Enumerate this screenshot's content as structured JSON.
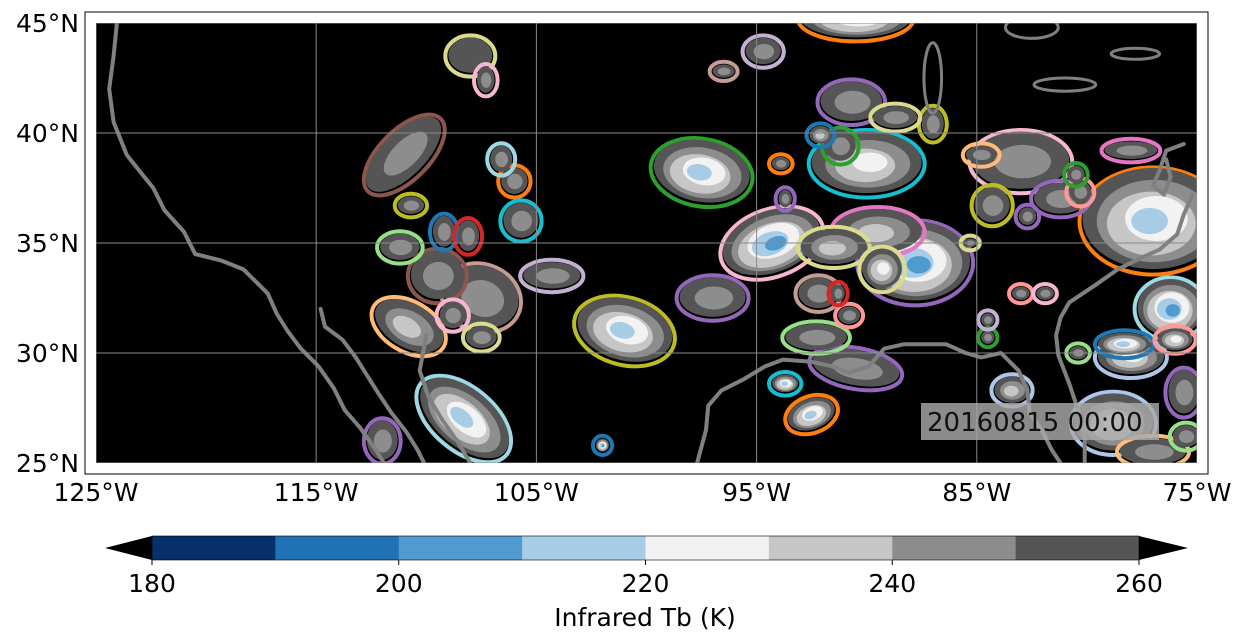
{
  "map": {
    "lon_range": [
      -125,
      -75
    ],
    "lat_range": [
      25,
      45
    ],
    "background_color": "#000000",
    "coastline_color": "#808080",
    "gridlines": true,
    "x_ticks": [
      {
        "value": -125,
        "label": "125°W"
      },
      {
        "value": -115,
        "label": "115°W"
      },
      {
        "value": -105,
        "label": "105°W"
      },
      {
        "value": -95,
        "label": "95°W"
      },
      {
        "value": -85,
        "label": "85°W"
      },
      {
        "value": -75,
        "label": "75°W"
      }
    ],
    "y_ticks": [
      {
        "value": 25,
        "label": "25°N"
      },
      {
        "value": 30,
        "label": "30°N"
      },
      {
        "value": 35,
        "label": "35°N"
      },
      {
        "value": 40,
        "label": "40°N"
      },
      {
        "value": 45,
        "label": "45°N"
      }
    ],
    "timestamp": "20160815 00:00",
    "timestamp_placement": "bottom-right"
  },
  "colorbar": {
    "label": "Infrared Tb (K)",
    "orientation": "horizontal",
    "extend": "both",
    "min": 180,
    "max": 260,
    "step": 10,
    "colors": [
      "#08306b",
      "#2171b5",
      "#4f9bcf",
      "#a6cde5",
      "#f2f2f2",
      "#c6c6c6",
      "#8d8d8d",
      "#555555"
    ],
    "under_color": "#000000",
    "over_color": "#000000",
    "ticks": [
      180,
      200,
      220,
      240,
      260
    ]
  },
  "tracked_features": {
    "outline_colors": [
      "#ff7f0e",
      "#2ca02c",
      "#1f77b4",
      "#9467bd",
      "#8c564b",
      "#e377c2",
      "#17becf",
      "#bcbd22",
      "#ff9896",
      "#98df8a",
      "#ffbb78",
      "#aec7e8",
      "#c5b0d5",
      "#f7b6d2",
      "#dbdb8d",
      "#9edae5",
      "#c49c94",
      "#d62728"
    ],
    "systems": [
      {
        "lon": -111.0,
        "lat": 39.0,
        "rx": 2.2,
        "ry": 1.0,
        "rot": -45,
        "core": 245,
        "outline": "#8c564b"
      },
      {
        "lon": -108.0,
        "lat": 43.5,
        "rx": 1.0,
        "ry": 0.8,
        "rot": 0,
        "core": 250,
        "outline": "#dbdb8d"
      },
      {
        "lon": -107.3,
        "lat": 42.4,
        "rx": 0.4,
        "ry": 0.6,
        "rot": 0,
        "core": 245,
        "outline": "#f7b6d2"
      },
      {
        "lon": -107.5,
        "lat": 32.5,
        "rx": 1.7,
        "ry": 1.4,
        "rot": 20,
        "core": 240,
        "outline": "#c49c94"
      },
      {
        "lon": -109.5,
        "lat": 33.5,
        "rx": 1.2,
        "ry": 1.1,
        "rot": 0,
        "core": 245,
        "outline": "#8c564b"
      },
      {
        "lon": -104.3,
        "lat": 33.5,
        "rx": 1.3,
        "ry": 0.6,
        "rot": 0,
        "core": 245,
        "outline": "#c5b0d5"
      },
      {
        "lon": -106.0,
        "lat": 37.8,
        "rx": 0.6,
        "ry": 0.6,
        "rot": 0,
        "core": 245,
        "outline": "#ff7f0e"
      },
      {
        "lon": -105.7,
        "lat": 36.0,
        "rx": 0.8,
        "ry": 0.8,
        "rot": 0,
        "core": 240,
        "outline": "#17becf"
      },
      {
        "lon": -106.6,
        "lat": 38.8,
        "rx": 0.5,
        "ry": 0.6,
        "rot": 0,
        "core": 245,
        "outline": "#9edae5"
      },
      {
        "lon": -110.7,
        "lat": 36.7,
        "rx": 0.6,
        "ry": 0.4,
        "rot": 0,
        "core": 245,
        "outline": "#bcbd22"
      },
      {
        "lon": -111.2,
        "lat": 34.8,
        "rx": 0.9,
        "ry": 0.6,
        "rot": 0,
        "core": 245,
        "outline": "#98df8a"
      },
      {
        "lon": -109.2,
        "lat": 35.5,
        "rx": 0.5,
        "ry": 0.7,
        "rot": 0,
        "core": 240,
        "outline": "#1f77b4"
      },
      {
        "lon": -108.1,
        "lat": 35.3,
        "rx": 0.5,
        "ry": 0.7,
        "rot": 0,
        "core": 240,
        "outline": "#d62728"
      },
      {
        "lon": -110.8,
        "lat": 31.2,
        "rx": 1.7,
        "ry": 1.0,
        "rot": 30,
        "core": 230,
        "outline": "#ffbb78"
      },
      {
        "lon": -108.3,
        "lat": 27.0,
        "rx": 2.4,
        "ry": 1.3,
        "rot": 40,
        "core": 210,
        "outline": "#9edae5"
      },
      {
        "lon": -108.8,
        "lat": 31.7,
        "rx": 0.6,
        "ry": 0.6,
        "rot": 0,
        "core": 245,
        "outline": "#f7b6d2"
      },
      {
        "lon": -107.5,
        "lat": 30.7,
        "rx": 0.7,
        "ry": 0.5,
        "rot": 0,
        "core": 240,
        "outline": "#dbdb8d"
      },
      {
        "lon": -112.0,
        "lat": 26.0,
        "rx": 0.7,
        "ry": 0.9,
        "rot": 0,
        "core": 245,
        "outline": "#9467bd"
      },
      {
        "lon": -101.0,
        "lat": 31.0,
        "rx": 2.2,
        "ry": 1.4,
        "rot": 15,
        "core": 215,
        "outline": "#bcbd22"
      },
      {
        "lon": -102.0,
        "lat": 25.8,
        "rx": 0.3,
        "ry": 0.3,
        "rot": 0,
        "core": 205,
        "outline": "#1f77b4"
      },
      {
        "lon": -97.5,
        "lat": 38.2,
        "rx": 2.2,
        "ry": 1.4,
        "rot": 10,
        "core": 215,
        "outline": "#2ca02c"
      },
      {
        "lon": -97.0,
        "lat": 32.5,
        "rx": 1.5,
        "ry": 0.9,
        "rot": 0,
        "core": 240,
        "outline": "#9467bd"
      },
      {
        "lon": -94.3,
        "lat": 35.0,
        "rx": 2.3,
        "ry": 1.4,
        "rot": -20,
        "core": 205,
        "outline": "#f7b6d2"
      },
      {
        "lon": -90.0,
        "lat": 38.6,
        "rx": 2.5,
        "ry": 1.4,
        "rot": 0,
        "core": 225,
        "outline": "#17becf"
      },
      {
        "lon": -87.8,
        "lat": 34.1,
        "rx": 2.5,
        "ry": 1.8,
        "rot": 0,
        "core": 200,
        "outline": "#9467bd"
      },
      {
        "lon": -89.5,
        "lat": 35.5,
        "rx": 2.0,
        "ry": 1.0,
        "rot": 0,
        "core": 230,
        "outline": "#e377c2"
      },
      {
        "lon": -91.5,
        "lat": 34.8,
        "rx": 1.5,
        "ry": 0.8,
        "rot": 0,
        "core": 235,
        "outline": "#dbdb8d"
      },
      {
        "lon": -89.3,
        "lat": 33.8,
        "rx": 0.9,
        "ry": 0.9,
        "rot": 0,
        "core": 225,
        "outline": "#dbdb8d"
      },
      {
        "lon": -90.7,
        "lat": 41.4,
        "rx": 1.4,
        "ry": 0.9,
        "rot": 0,
        "core": 245,
        "outline": "#9467bd"
      },
      {
        "lon": -91.2,
        "lat": 39.4,
        "rx": 0.7,
        "ry": 0.7,
        "rot": 0,
        "core": 245,
        "outline": "#2ca02c"
      },
      {
        "lon": -94.7,
        "lat": 43.7,
        "rx": 0.8,
        "ry": 0.6,
        "rot": 0,
        "core": 245,
        "outline": "#c5b0d5"
      },
      {
        "lon": -90.5,
        "lat": 45.2,
        "rx": 2.5,
        "ry": 0.9,
        "rot": 0,
        "core": 210,
        "outline": "#ff7f0e"
      },
      {
        "lon": -96.5,
        "lat": 42.8,
        "rx": 0.5,
        "ry": 0.3,
        "rot": 0,
        "core": 245,
        "outline": "#c49c94"
      },
      {
        "lon": -92.5,
        "lat": 27.2,
        "rx": 1.1,
        "ry": 0.7,
        "rot": -20,
        "core": 210,
        "outline": "#ff7f0e"
      },
      {
        "lon": -90.5,
        "lat": 29.3,
        "rx": 2.0,
        "ry": 0.8,
        "rot": 10,
        "core": 245,
        "outline": "#9467bd"
      },
      {
        "lon": -92.3,
        "lat": 30.7,
        "rx": 1.4,
        "ry": 0.6,
        "rot": 0,
        "core": 240,
        "outline": "#98df8a"
      },
      {
        "lon": -93.7,
        "lat": 28.6,
        "rx": 0.6,
        "ry": 0.4,
        "rot": 0,
        "core": 210,
        "outline": "#17becf"
      },
      {
        "lon": -92.2,
        "lat": 32.7,
        "rx": 0.9,
        "ry": 0.7,
        "rot": 0,
        "core": 240,
        "outline": "#c49c94"
      },
      {
        "lon": -93.7,
        "lat": 37.0,
        "rx": 0.3,
        "ry": 0.4,
        "rot": 0,
        "core": 245,
        "outline": "#9467bd"
      },
      {
        "lon": -90.8,
        "lat": 31.7,
        "rx": 0.5,
        "ry": 0.4,
        "rot": 0,
        "core": 240,
        "outline": "#ff9896"
      },
      {
        "lon": -91.3,
        "lat": 32.7,
        "rx": 0.3,
        "ry": 0.4,
        "rot": 0,
        "core": 240,
        "outline": "#d62728"
      },
      {
        "lon": -93.9,
        "lat": 38.6,
        "rx": 0.4,
        "ry": 0.3,
        "rot": 0,
        "core": 240,
        "outline": "#ff7f0e"
      },
      {
        "lon": -92.1,
        "lat": 39.9,
        "rx": 0.5,
        "ry": 0.4,
        "rot": 0,
        "core": 235,
        "outline": "#1f77b4"
      },
      {
        "lon": -87.0,
        "lat": 40.4,
        "rx": 0.5,
        "ry": 0.7,
        "rot": 0,
        "core": 245,
        "outline": "#bcbd22"
      },
      {
        "lon": -88.7,
        "lat": 40.7,
        "rx": 1.0,
        "ry": 0.5,
        "rot": 0,
        "core": 245,
        "outline": "#dbdb8d"
      },
      {
        "lon": -83.0,
        "lat": 38.7,
        "rx": 2.2,
        "ry": 1.3,
        "rot": 0,
        "core": 240,
        "outline": "#f7b6d2"
      },
      {
        "lon": -84.8,
        "lat": 39.0,
        "rx": 0.7,
        "ry": 0.4,
        "rot": 0,
        "core": 240,
        "outline": "#ffbb78"
      },
      {
        "lon": -78.0,
        "lat": 39.2,
        "rx": 1.2,
        "ry": 0.4,
        "rot": 0,
        "core": 245,
        "outline": "#e377c2"
      },
      {
        "lon": -77.0,
        "lat": 36.0,
        "rx": 3.2,
        "ry": 2.3,
        "rot": 0,
        "core": 210,
        "outline": "#ff7f0e"
      },
      {
        "lon": -84.3,
        "lat": 36.7,
        "rx": 0.8,
        "ry": 0.8,
        "rot": 0,
        "core": 240,
        "outline": "#bcbd22"
      },
      {
        "lon": -81.2,
        "lat": 37.0,
        "rx": 1.2,
        "ry": 0.7,
        "rot": 0,
        "core": 240,
        "outline": "#9467bd"
      },
      {
        "lon": -82.7,
        "lat": 36.2,
        "rx": 0.4,
        "ry": 0.4,
        "rot": 0,
        "core": 245,
        "outline": "#9467bd"
      },
      {
        "lon": -80.3,
        "lat": 37.3,
        "rx": 0.5,
        "ry": 0.5,
        "rot": 0,
        "core": 240,
        "outline": "#ff9896"
      },
      {
        "lon": -80.5,
        "lat": 38.1,
        "rx": 0.4,
        "ry": 0.4,
        "rot": 0,
        "core": 245,
        "outline": "#2ca02c"
      },
      {
        "lon": -76.2,
        "lat": 32.0,
        "rx": 1.5,
        "ry": 1.3,
        "rot": 0,
        "core": 205,
        "outline": "#9edae5"
      },
      {
        "lon": -78.0,
        "lat": 29.8,
        "rx": 1.5,
        "ry": 0.8,
        "rot": 0,
        "core": 225,
        "outline": "#aec7e8"
      },
      {
        "lon": -78.3,
        "lat": 30.4,
        "rx": 1.2,
        "ry": 0.5,
        "rot": 0,
        "core": 215,
        "outline": "#1f77b4"
      },
      {
        "lon": -76.0,
        "lat": 30.6,
        "rx": 0.8,
        "ry": 0.5,
        "rot": 0,
        "core": 220,
        "outline": "#ff9896"
      },
      {
        "lon": -75.6,
        "lat": 28.2,
        "rx": 0.7,
        "ry": 1.0,
        "rot": 0,
        "core": 240,
        "outline": "#9467bd"
      },
      {
        "lon": -78.8,
        "lat": 26.8,
        "rx": 1.8,
        "ry": 1.3,
        "rot": 0,
        "core": 225,
        "outline": "#aec7e8"
      },
      {
        "lon": -77.0,
        "lat": 25.5,
        "rx": 1.5,
        "ry": 0.6,
        "rot": 0,
        "core": 240,
        "outline": "#ffbb78"
      },
      {
        "lon": -75.5,
        "lat": 26.2,
        "rx": 0.6,
        "ry": 0.5,
        "rot": 0,
        "core": 240,
        "outline": "#98df8a"
      },
      {
        "lon": -80.4,
        "lat": 30.0,
        "rx": 0.4,
        "ry": 0.3,
        "rot": 0,
        "core": 245,
        "outline": "#98df8a"
      },
      {
        "lon": -83.4,
        "lat": 28.3,
        "rx": 0.8,
        "ry": 0.6,
        "rot": 0,
        "core": 230,
        "outline": "#aec7e8"
      },
      {
        "lon": -84.5,
        "lat": 30.7,
        "rx": 0.3,
        "ry": 0.3,
        "rot": 0,
        "core": 240,
        "outline": "#2ca02c"
      },
      {
        "lon": -83.0,
        "lat": 32.7,
        "rx": 0.4,
        "ry": 0.3,
        "rot": 0,
        "core": 245,
        "outline": "#ff9896"
      },
      {
        "lon": -81.9,
        "lat": 32.7,
        "rx": 0.4,
        "ry": 0.3,
        "rot": 0,
        "core": 245,
        "outline": "#f7b6d2"
      },
      {
        "lon": -84.5,
        "lat": 31.5,
        "rx": 0.3,
        "ry": 0.3,
        "rot": 0,
        "core": 245,
        "outline": "#c5b0d5"
      },
      {
        "lon": -85.3,
        "lat": 35.0,
        "rx": 0.3,
        "ry": 0.2,
        "rot": 0,
        "core": 245,
        "outline": "#dbdb8d"
      }
    ]
  }
}
